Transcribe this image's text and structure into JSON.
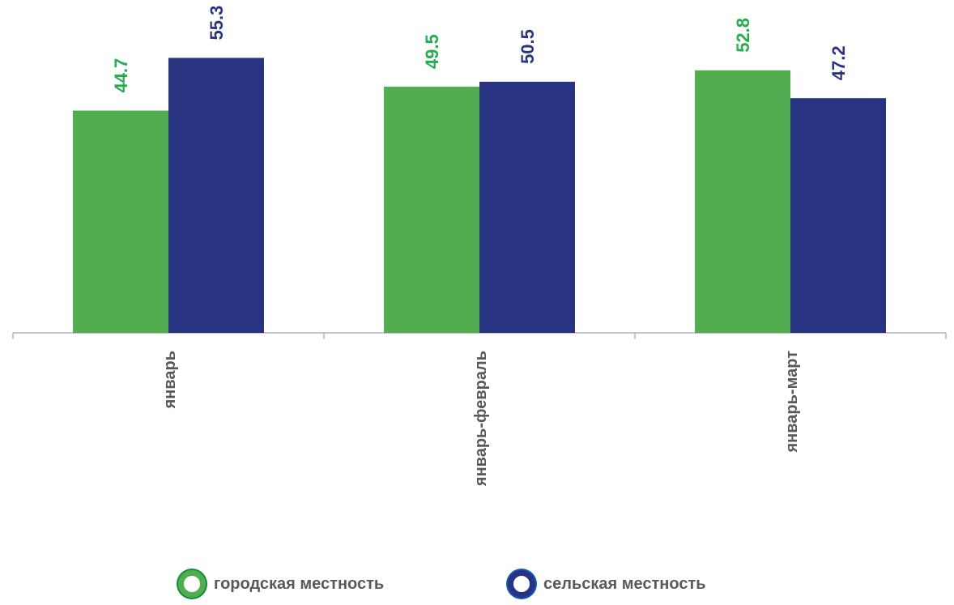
{
  "chart_data": {
    "type": "bar",
    "categories": [
      "январь",
      "январь-февраль",
      "январь-март"
    ],
    "series": [
      {
        "name": "городская местность",
        "values": [
          44.7,
          49.5,
          52.8
        ],
        "color": "#51AD50",
        "label_color": "#1FAF4B"
      },
      {
        "name": "сельская местность",
        "values": [
          55.3,
          50.5,
          47.2
        ],
        "color": "#283481",
        "label_color": "#283481"
      }
    ],
    "ylim": [
      0,
      60
    ],
    "grid": false,
    "legend_position": "bottom",
    "data_labels": true,
    "axis_color": "#8C8C8C",
    "label_text_color": "#595959"
  },
  "legend": {
    "items": [
      {
        "label": "городская местность",
        "marker_color": "#51AD50",
        "ring_color": "#0B8F3A"
      },
      {
        "label": "сельская местность",
        "marker_color": "#283481",
        "ring_color": "#0B5CC1"
      }
    ]
  }
}
